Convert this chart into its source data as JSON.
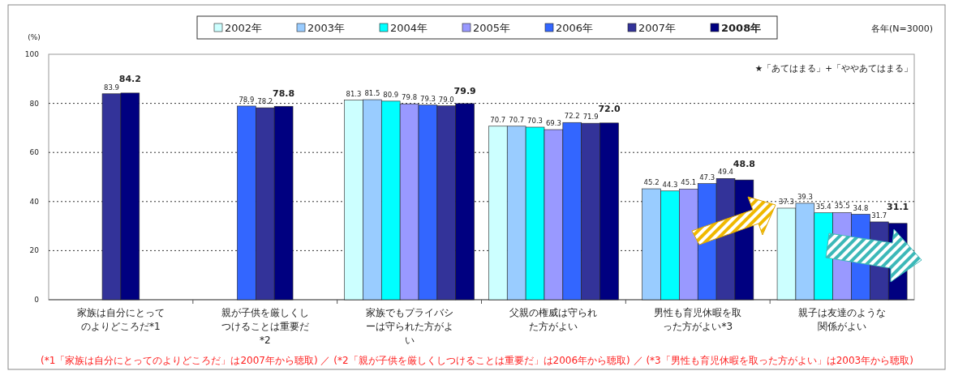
{
  "chart_data": {
    "type": "bar",
    "subtitle": "各年(N=3000)",
    "ylabel": "(%)",
    "annotations": [
      "★「あてはまる」+「ややあてはまる」",
      "(*1「家族は自分にとってのよりどころだ」は2007年から聴取) ／ (*2「親が子供を厳しくしつけることは重要だ」は2006年から聴取) ／ (*3「男性も育児休暇を取った方がよい」は2003年から聴取)"
    ],
    "categories": [
      "家族は自分にとってのよりどころだ*1",
      "親が子供を厳しくしつけることは重要だ*2",
      "家族でもプライバシーは守られた方がよい",
      "父親の権威は守られた方がよい",
      "男性も育児休暇を取った方がよい*3",
      "親子は友達のような関係がよい"
    ],
    "series": [
      {
        "name": "2002年",
        "color": "#ccffff",
        "values": [
          null,
          null,
          81.3,
          70.7,
          null,
          37.3
        ],
        "value_labels": [
          null,
          null,
          "81.3",
          "70.7",
          null,
          "37.3"
        ]
      },
      {
        "name": "2003年",
        "color": "#99ccff",
        "values": [
          null,
          null,
          81.5,
          70.7,
          45.2,
          39.3
        ],
        "value_labels": [
          null,
          null,
          "81.5",
          "70.7",
          "45.2",
          "39.3"
        ]
      },
      {
        "name": "2004年",
        "color": "#00ffff",
        "values": [
          null,
          null,
          80.9,
          70.3,
          44.3,
          35.4
        ],
        "value_labels": [
          null,
          null,
          "80.9",
          "70.3",
          "44.3",
          "35.4"
        ]
      },
      {
        "name": "2005年",
        "color": "#9999ff",
        "values": [
          null,
          null,
          79.8,
          69.3,
          45.1,
          35.5
        ],
        "value_labels": [
          null,
          null,
          "79.8",
          "69.3",
          "45.1",
          "35.5"
        ]
      },
      {
        "name": "2006年",
        "color": "#3366ff",
        "values": [
          null,
          78.9,
          79.3,
          72.2,
          47.3,
          34.8
        ],
        "value_labels": [
          null,
          "78.9",
          "79.3",
          "72.2",
          "47.3",
          "34.8"
        ]
      },
      {
        "name": "2007年",
        "color": "#333399",
        "values": [
          83.9,
          78.2,
          79.0,
          71.9,
          49.4,
          31.7
        ],
        "value_labels": [
          "83.9",
          "78.2",
          "79.0",
          "71.9",
          "49.4",
          "31.7"
        ]
      },
      {
        "name": "2008年",
        "color": "#000080",
        "values": [
          84.2,
          78.8,
          79.9,
          72.0,
          48.8,
          31.1
        ],
        "value_labels": [
          "84.2",
          "78.8",
          "79.9",
          "72.0",
          "48.8",
          "31.1"
        ]
      }
    ],
    "ylim": [
      0,
      100
    ],
    "yticks": [
      0,
      20,
      40,
      60,
      80,
      100
    ],
    "grid": "y",
    "legend": "top"
  }
}
